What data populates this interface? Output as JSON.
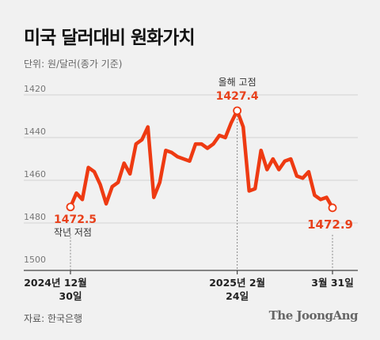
{
  "header": {
    "title": "미국 달러대비 원화가치",
    "unit": "단위: 원/달러(종가 기준)"
  },
  "footer": {
    "source": "자료: 한국은행",
    "brand": "The JoongAng"
  },
  "colors": {
    "line": "#ee3a12",
    "highlight": "#e8411c",
    "grid": "#d2d2d2",
    "axis": "#444444"
  },
  "chart_data": {
    "type": "line",
    "title": "미국 달러대비 원화가치",
    "ylim": [
      1500,
      1420
    ],
    "y_inverted": true,
    "yticks": [
      1420,
      1440,
      1460,
      1480,
      1500
    ],
    "xticks": [
      {
        "line1": "2024년 12월",
        "line2": "30일"
      },
      {
        "line1": "2025년 2월",
        "line2": "24일"
      },
      {
        "line1": "3월 31일",
        "line2": ""
      }
    ],
    "series": [
      {
        "values": [
          1472.5,
          1466,
          1469,
          1454,
          1456,
          1462,
          1471,
          1463,
          1461,
          1452,
          1457,
          1443,
          1441,
          1435,
          1468,
          1461,
          1446,
          1447,
          1449,
          1450,
          1451,
          1443,
          1443,
          1445,
          1443,
          1439,
          1440,
          1433,
          1427.4,
          1435,
          1465,
          1464,
          1446,
          1455,
          1450,
          1455,
          1451,
          1450,
          1458,
          1459,
          1456,
          1467,
          1469,
          1468,
          1472.9
        ]
      }
    ],
    "annotations": [
      {
        "label": "1472.5",
        "note": "작년 저점"
      },
      {
        "label": "1427.4",
        "note": "올해 고점"
      },
      {
        "label": "1472.9",
        "note": ""
      }
    ]
  }
}
